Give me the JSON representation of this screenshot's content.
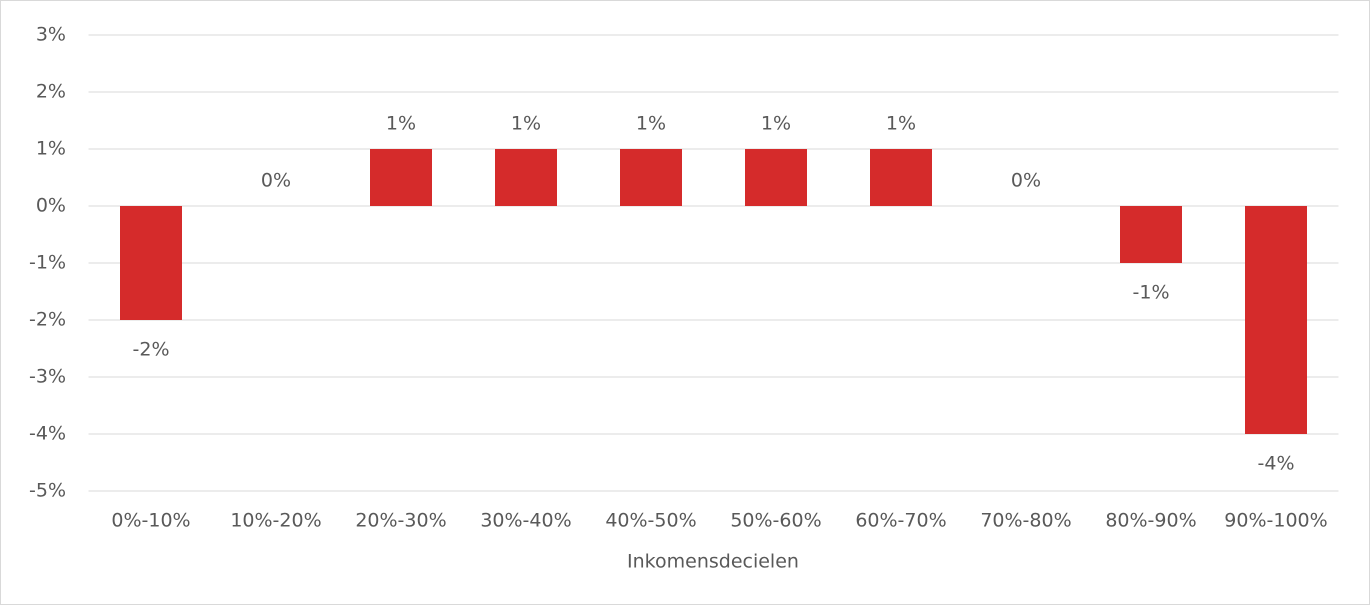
{
  "chart_data": {
    "type": "bar",
    "x_label": "Inkomensdecielen",
    "categories": [
      "0%-10%",
      "10%-20%",
      "20%-30%",
      "30%-40%",
      "40%-50%",
      "50%-60%",
      "60%-70%",
      "70%-80%",
      "80%-90%",
      "90%-100%"
    ],
    "values": [
      -2,
      0,
      1,
      1,
      1,
      1,
      1,
      0,
      -1,
      -4
    ],
    "value_labels": [
      "-2%",
      "0%",
      "1%",
      "1%",
      "1%",
      "1%",
      "1%",
      "0%",
      "-1%",
      "-4%"
    ],
    "color": "#d52b2b",
    "ylim": [
      -5,
      3
    ],
    "yticks": [
      {
        "value": -5,
        "label": "-5%"
      },
      {
        "value": -4,
        "label": "-4%"
      },
      {
        "value": -3,
        "label": "-3%"
      },
      {
        "value": -2,
        "label": "-2%"
      },
      {
        "value": -1,
        "label": "-1%"
      },
      {
        "value": 0,
        "label": "0%"
      },
      {
        "value": 1,
        "label": "1%"
      },
      {
        "value": 2,
        "label": "2%"
      },
      {
        "value": 3,
        "label": "3%"
      }
    ],
    "grid": true
  }
}
